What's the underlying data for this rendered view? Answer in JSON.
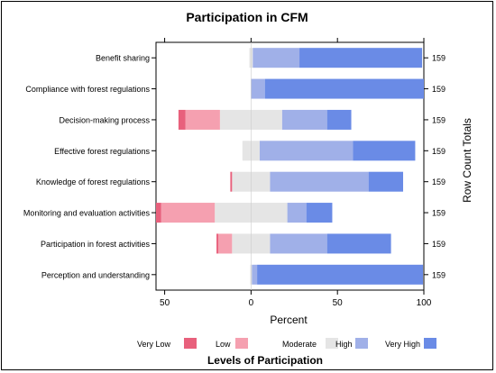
{
  "chart_data": {
    "type": "bar",
    "subtype": "diverging-stacked-likert",
    "title": "Participation in CFM",
    "xlabel": "Percent",
    "ylabel_right": "Row Count Totals",
    "xlim": [
      -55,
      100
    ],
    "xticks": [
      {
        "value": -50,
        "label": "50"
      },
      {
        "value": 0,
        "label": "0"
      },
      {
        "value": 50,
        "label": "50"
      },
      {
        "value": 100,
        "label": "100"
      }
    ],
    "legend_title": "Levels of Participation",
    "legend_position": "bottom",
    "categories": [
      "Benefit sharing",
      "Compliance with forest regulations",
      "Decision-making process",
      "Effective forest regulations",
      "Knowledge of forest regulations",
      "Monitoring and evaluation activities",
      "Participation in forest activities",
      "Perception and understanding"
    ],
    "row_totals": [
      "159",
      "159",
      "159",
      "159",
      "159",
      "159",
      "159",
      "159"
    ],
    "series": [
      {
        "name": "Very Low",
        "color": "#e8607c",
        "values": [
          0,
          0,
          4,
          0,
          1,
          3,
          1,
          0
        ]
      },
      {
        "name": "Low",
        "color": "#f5a0b0",
        "values": [
          0,
          0,
          20,
          0,
          0,
          31,
          8,
          0
        ]
      },
      {
        "name": "Moderate",
        "color": "#e5e5e5",
        "values": [
          2,
          0,
          36,
          10,
          22,
          42,
          22,
          1
        ]
      },
      {
        "name": "High",
        "color": "#a0b0e8",
        "values": [
          27,
          8,
          26,
          54,
          57,
          11,
          33,
          3
        ]
      },
      {
        "name": "Very High",
        "color": "#6a8be6",
        "values": [
          71,
          92,
          14,
          36,
          20,
          15,
          37,
          96
        ]
      }
    ]
  }
}
